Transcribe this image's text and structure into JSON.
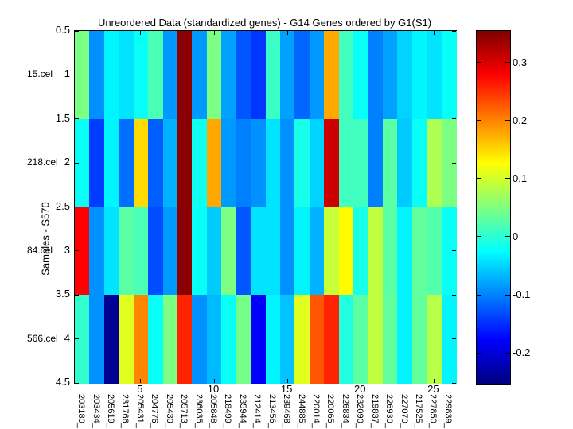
{
  "title": "Unreordered Data (standardized genes) - G14 Genes ordered by G1(S1)",
  "y_axis": {
    "label": "Samples - S570",
    "tick_labels": [
      "0.5",
      "1",
      "1.5",
      "2",
      "2.5",
      "3",
      "3.5",
      "4",
      "4.5"
    ],
    "sample_labels": [
      "15.cel",
      "218.cel",
      "84.cel",
      "566.cel"
    ]
  },
  "x_axis": {
    "tick_labels": [
      "5",
      "10",
      "15",
      "20",
      "25"
    ],
    "gene_labels": [
      "203180_",
      "203434_",
      "205619_",
      "231766_",
      "205431_",
      "204776_",
      "205430_",
      "205713_",
      "236035_",
      "205848_",
      "218499_",
      "235944_",
      "212414_",
      "213456_",
      "239468_",
      "244885_",
      "220014_",
      "220065_",
      "226834_",
      "232090_",
      "219837_",
      "226930_",
      "227070_",
      "217525_",
      "227850_",
      "229839_"
    ]
  },
  "colorbar": {
    "tick_labels": [
      "0.3",
      "0.2",
      "0.1",
      "0",
      "-0.1",
      "-0.2"
    ],
    "tick_values": [
      0.3,
      0.2,
      0.1,
      0,
      -0.1,
      -0.2
    ],
    "top_color": "#8a0000",
    "bottom_color": "#000084"
  },
  "chart_data": {
    "type": "heatmap",
    "colormap": "jet",
    "title": "Unreordered Data (standardized genes) - G14 Genes ordered by G1(S1)",
    "ylabel": "Samples - S570",
    "vmin": -0.252,
    "vmax": 0.356,
    "x_ticks": [
      5,
      10,
      15,
      20,
      25
    ],
    "y_ticks": [
      0.5,
      1,
      1.5,
      2,
      2.5,
      3,
      3.5,
      4,
      4.5
    ],
    "rows": [
      "15.cel",
      "218.cel",
      "84.cel",
      "566.cel"
    ],
    "columns": [
      "203180_",
      "203434_",
      "205619_",
      "231766_",
      "205431_",
      "204776_",
      "205430_",
      "205713_",
      "236035_",
      "205848_",
      "218499_",
      "235944_",
      "212414_",
      "213456_",
      "239468_",
      "244885_",
      "220014_",
      "220065_",
      "226834_",
      "232090_",
      "219837_",
      "226930_",
      "227070_",
      "217525_",
      "227850_",
      "229839_"
    ],
    "values": [
      [
        0.05,
        -0.09,
        -0.03,
        -0.04,
        -0.02,
        0.02,
        -0.085,
        0.35,
        -0.085,
        0.05,
        -0.08,
        -0.125,
        -0.145,
        0.01,
        -0.08,
        -0.115,
        -0.085,
        0.18,
        0.015,
        -0.02,
        -0.1,
        -0.08,
        -0.05,
        -0.03,
        -0.04,
        -0.02
      ],
      [
        -0.02,
        -0.14,
        -0.03,
        -0.11,
        0.15,
        -0.12,
        -0.07,
        0.35,
        -0.015,
        0.18,
        -0.085,
        -0.1,
        -0.09,
        -0.04,
        -0.09,
        -0.01,
        -0.05,
        0.31,
        0.015,
        0.015,
        -0.1,
        0.03,
        -0.055,
        -0.02,
        0.08,
        0.05
      ],
      [
        0.28,
        -0.09,
        -0.04,
        0.03,
        0.02,
        -0.13,
        -0.085,
        0.35,
        -0.02,
        -0.055,
        0.05,
        -0.125,
        -0.04,
        -0.04,
        -0.09,
        -0.03,
        -0.07,
        0.095,
        0.13,
        -0.01,
        0.09,
        0.03,
        -0.03,
        0.035,
        0.025,
        -0.02
      ],
      [
        0.005,
        -0.09,
        -0.24,
        0.11,
        0.2,
        -0.02,
        0.05,
        0.26,
        -0.09,
        -0.065,
        -0.02,
        0.045,
        -0.18,
        -0.03,
        -0.06,
        0.11,
        0.23,
        0.26,
        -0.005,
        0.03,
        0.09,
        0.035,
        -0.03,
        0.035,
        0.085,
        -0.03
      ]
    ]
  }
}
